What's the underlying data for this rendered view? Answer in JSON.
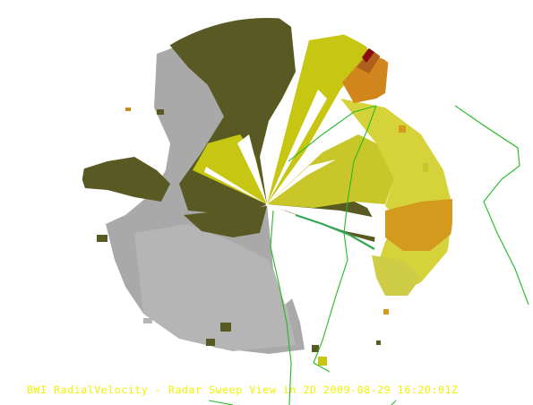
{
  "caption": "BWI RadialVelocity - Radar Sweep View in 2D 2009-08-29 16:20:01Z",
  "colors": {
    "background": "#ffffff",
    "caption": "#f2f200",
    "olive_dark": "#595a23",
    "gray": "#a9a9a9",
    "yellow_green": "#c7c613",
    "khaki": "#d6d33a",
    "orange": "#d49a1e",
    "brown": "#b0601d",
    "dark_red": "#8a0d0d",
    "boundary_line": "#22bb22"
  },
  "icons": {
    "radar_site": "center-point-icon"
  }
}
